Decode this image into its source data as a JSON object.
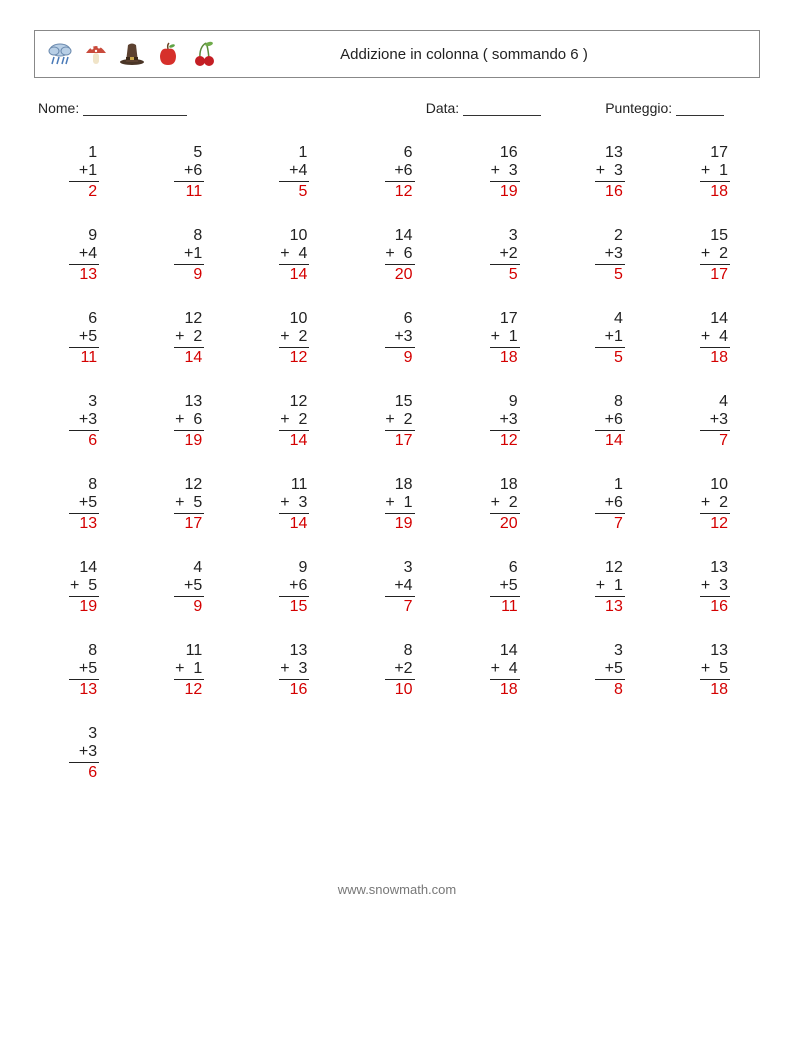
{
  "header": {
    "title": "Addizione in colonna ( sommando 6 )"
  },
  "info": {
    "nome_label": "Nome:",
    "data_label": "Data:",
    "punteggio_label": "Punteggio:",
    "nome_blank_width": 104,
    "data_blank_width": 78,
    "punt_blank_width": 48
  },
  "style": {
    "answer_color": "#d40000",
    "text_color": "#222222",
    "border_color": "#888888",
    "font_size_problem": 16,
    "font_size_header": 15,
    "font_size_info": 14,
    "columns": 7
  },
  "problems": [
    {
      "a": "1",
      "b": "1",
      "ans": "2"
    },
    {
      "a": "5",
      "b": "6",
      "ans": "11"
    },
    {
      "a": "1",
      "b": "4",
      "ans": "5"
    },
    {
      "a": "6",
      "b": "6",
      "ans": "12"
    },
    {
      "a": "16",
      "b": "3",
      "ans": "19",
      "sp": true
    },
    {
      "a": "13",
      "b": "3",
      "ans": "16",
      "sp": true
    },
    {
      "a": "17",
      "b": "1",
      "ans": "18",
      "sp": true
    },
    {
      "a": "9",
      "b": "4",
      "ans": "13"
    },
    {
      "a": "8",
      "b": "1",
      "ans": "9"
    },
    {
      "a": "10",
      "b": "4",
      "ans": "14",
      "sp": true
    },
    {
      "a": "14",
      "b": "6",
      "ans": "20",
      "sp": true
    },
    {
      "a": "3",
      "b": "2",
      "ans": "5"
    },
    {
      "a": "2",
      "b": "3",
      "ans": "5"
    },
    {
      "a": "15",
      "b": "2",
      "ans": "17",
      "sp": true
    },
    {
      "a": "6",
      "b": "5",
      "ans": "11"
    },
    {
      "a": "12",
      "b": "2",
      "ans": "14",
      "sp": true
    },
    {
      "a": "10",
      "b": "2",
      "ans": "12",
      "sp": true
    },
    {
      "a": "6",
      "b": "3",
      "ans": "9"
    },
    {
      "a": "17",
      "b": "1",
      "ans": "18",
      "sp": true
    },
    {
      "a": "4",
      "b": "1",
      "ans": "5"
    },
    {
      "a": "14",
      "b": "4",
      "ans": "18",
      "sp": true
    },
    {
      "a": "3",
      "b": "3",
      "ans": "6"
    },
    {
      "a": "13",
      "b": "6",
      "ans": "19",
      "sp": true
    },
    {
      "a": "12",
      "b": "2",
      "ans": "14",
      "sp": true
    },
    {
      "a": "15",
      "b": "2",
      "ans": "17",
      "sp": true
    },
    {
      "a": "9",
      "b": "3",
      "ans": "12"
    },
    {
      "a": "8",
      "b": "6",
      "ans": "14"
    },
    {
      "a": "4",
      "b": "3",
      "ans": "7"
    },
    {
      "a": "8",
      "b": "5",
      "ans": "13"
    },
    {
      "a": "12",
      "b": "5",
      "ans": "17",
      "sp": true
    },
    {
      "a": "11",
      "b": "3",
      "ans": "14",
      "sp": true
    },
    {
      "a": "18",
      "b": "1",
      "ans": "19",
      "sp": true
    },
    {
      "a": "18",
      "b": "2",
      "ans": "20",
      "sp": true
    },
    {
      "a": "1",
      "b": "6",
      "ans": "7"
    },
    {
      "a": "10",
      "b": "2",
      "ans": "12",
      "sp": true
    },
    {
      "a": "14",
      "b": "5",
      "ans": "19",
      "sp": true
    },
    {
      "a": "4",
      "b": "5",
      "ans": "9"
    },
    {
      "a": "9",
      "b": "6",
      "ans": "15"
    },
    {
      "a": "3",
      "b": "4",
      "ans": "7"
    },
    {
      "a": "6",
      "b": "5",
      "ans": "11"
    },
    {
      "a": "12",
      "b": "1",
      "ans": "13",
      "sp": true
    },
    {
      "a": "13",
      "b": "3",
      "ans": "16",
      "sp": true
    },
    {
      "a": "8",
      "b": "5",
      "ans": "13"
    },
    {
      "a": "11",
      "b": "1",
      "ans": "12",
      "sp": true
    },
    {
      "a": "13",
      "b": "3",
      "ans": "16",
      "sp": true
    },
    {
      "a": "8",
      "b": "2",
      "ans": "10"
    },
    {
      "a": "14",
      "b": "4",
      "ans": "18",
      "sp": true
    },
    {
      "a": "3",
      "b": "5",
      "ans": "8"
    },
    {
      "a": "13",
      "b": "5",
      "ans": "18",
      "sp": true
    },
    {
      "a": "3",
      "b": "3",
      "ans": "6"
    }
  ],
  "footer": {
    "text": "www.snowmath.com"
  }
}
